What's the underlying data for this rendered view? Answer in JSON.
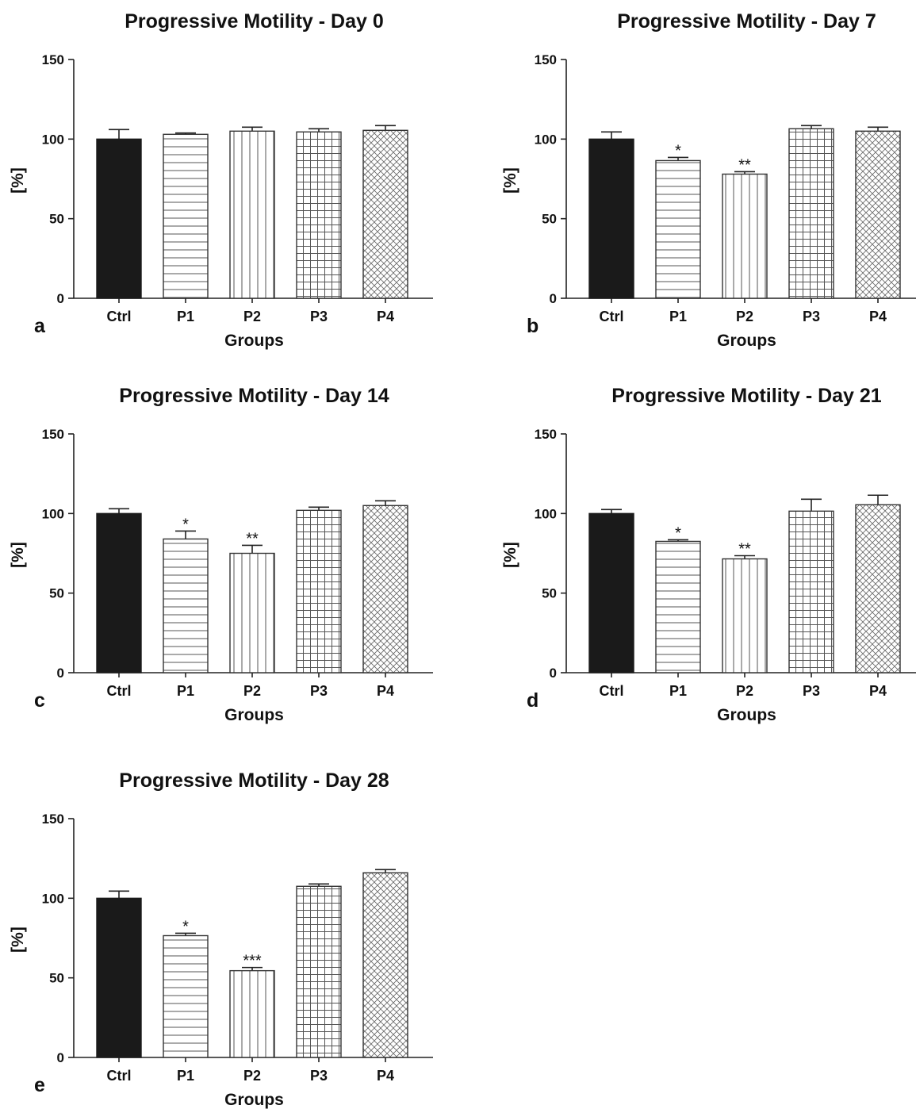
{
  "colors": {
    "axis": "#222222",
    "bar_fill": "#1a1a1a",
    "bar_stroke": "#333333",
    "pattern_line": "#555555",
    "background": "#ffffff"
  },
  "chart_data": [
    {
      "type": "bar",
      "panel": "a",
      "title": "Progressive Motility - Day 0",
      "xlabel": "Groups",
      "ylabel": "[%]",
      "ylim": [
        0,
        150
      ],
      "yticks": [
        "0",
        "50",
        "100",
        "150"
      ],
      "categories": [
        "Ctrl",
        "P1",
        "P2",
        "P3",
        "P4"
      ],
      "values": [
        100,
        103,
        105,
        104.5,
        105.5
      ],
      "errors": [
        6,
        0.8,
        2.5,
        2,
        3
      ],
      "significance": [
        "",
        "",
        "",
        "",
        ""
      ],
      "fills": [
        "solid",
        "horizontal",
        "vertical",
        "grid",
        "crosshatch"
      ]
    },
    {
      "type": "bar",
      "panel": "b",
      "title": "Progressive Motility - Day 7",
      "xlabel": "Groups",
      "ylabel": "[%]",
      "ylim": [
        0,
        150
      ],
      "yticks": [
        "0",
        "50",
        "100",
        "150"
      ],
      "categories": [
        "Ctrl",
        "P1",
        "P2",
        "P3",
        "P4"
      ],
      "values": [
        100,
        86.5,
        78,
        106.5,
        105
      ],
      "errors": [
        4.5,
        2,
        1.5,
        2,
        2.5
      ],
      "significance": [
        "",
        "*",
        "**",
        "",
        ""
      ],
      "fills": [
        "solid",
        "horizontal",
        "vertical",
        "grid",
        "crosshatch"
      ]
    },
    {
      "type": "bar",
      "panel": "c",
      "title": "Progressive Motility - Day 14",
      "xlabel": "Groups",
      "ylabel": "[%]",
      "ylim": [
        0,
        150
      ],
      "yticks": [
        "0",
        "50",
        "100",
        "150"
      ],
      "categories": [
        "Ctrl",
        "P1",
        "P2",
        "P3",
        "P4"
      ],
      "values": [
        100,
        84,
        75,
        102,
        105
      ],
      "errors": [
        3,
        5,
        5,
        2,
        3
      ],
      "significance": [
        "",
        "*",
        "**",
        "",
        ""
      ],
      "fills": [
        "solid",
        "horizontal",
        "vertical",
        "grid",
        "crosshatch"
      ]
    },
    {
      "type": "bar",
      "panel": "d",
      "title": "Progressive Motility - Day 21",
      "xlabel": "Groups",
      "ylabel": "[%]",
      "ylim": [
        0,
        150
      ],
      "yticks": [
        "0",
        "50",
        "100",
        "150"
      ],
      "categories": [
        "Ctrl",
        "P1",
        "P2",
        "P3",
        "P4"
      ],
      "values": [
        100,
        82.5,
        71.5,
        101.5,
        105.5
      ],
      "errors": [
        2.5,
        1,
        2,
        7.5,
        6
      ],
      "significance": [
        "",
        "*",
        "**",
        "",
        ""
      ],
      "fills": [
        "solid",
        "horizontal",
        "vertical",
        "grid",
        "crosshatch"
      ]
    },
    {
      "type": "bar",
      "panel": "e",
      "title": "Progressive Motility - Day 28",
      "xlabel": "Groups",
      "ylabel": "[%]",
      "ylim": [
        0,
        150
      ],
      "yticks": [
        "0",
        "50",
        "100",
        "150"
      ],
      "categories": [
        "Ctrl",
        "P1",
        "P2",
        "P3",
        "P4"
      ],
      "values": [
        100,
        76.5,
        54.5,
        107.5,
        116
      ],
      "errors": [
        4.5,
        1.5,
        2,
        1.5,
        2
      ],
      "significance": [
        "",
        "*",
        "***",
        "",
        ""
      ],
      "fills": [
        "solid",
        "horizontal",
        "vertical",
        "grid",
        "crosshatch"
      ]
    }
  ]
}
